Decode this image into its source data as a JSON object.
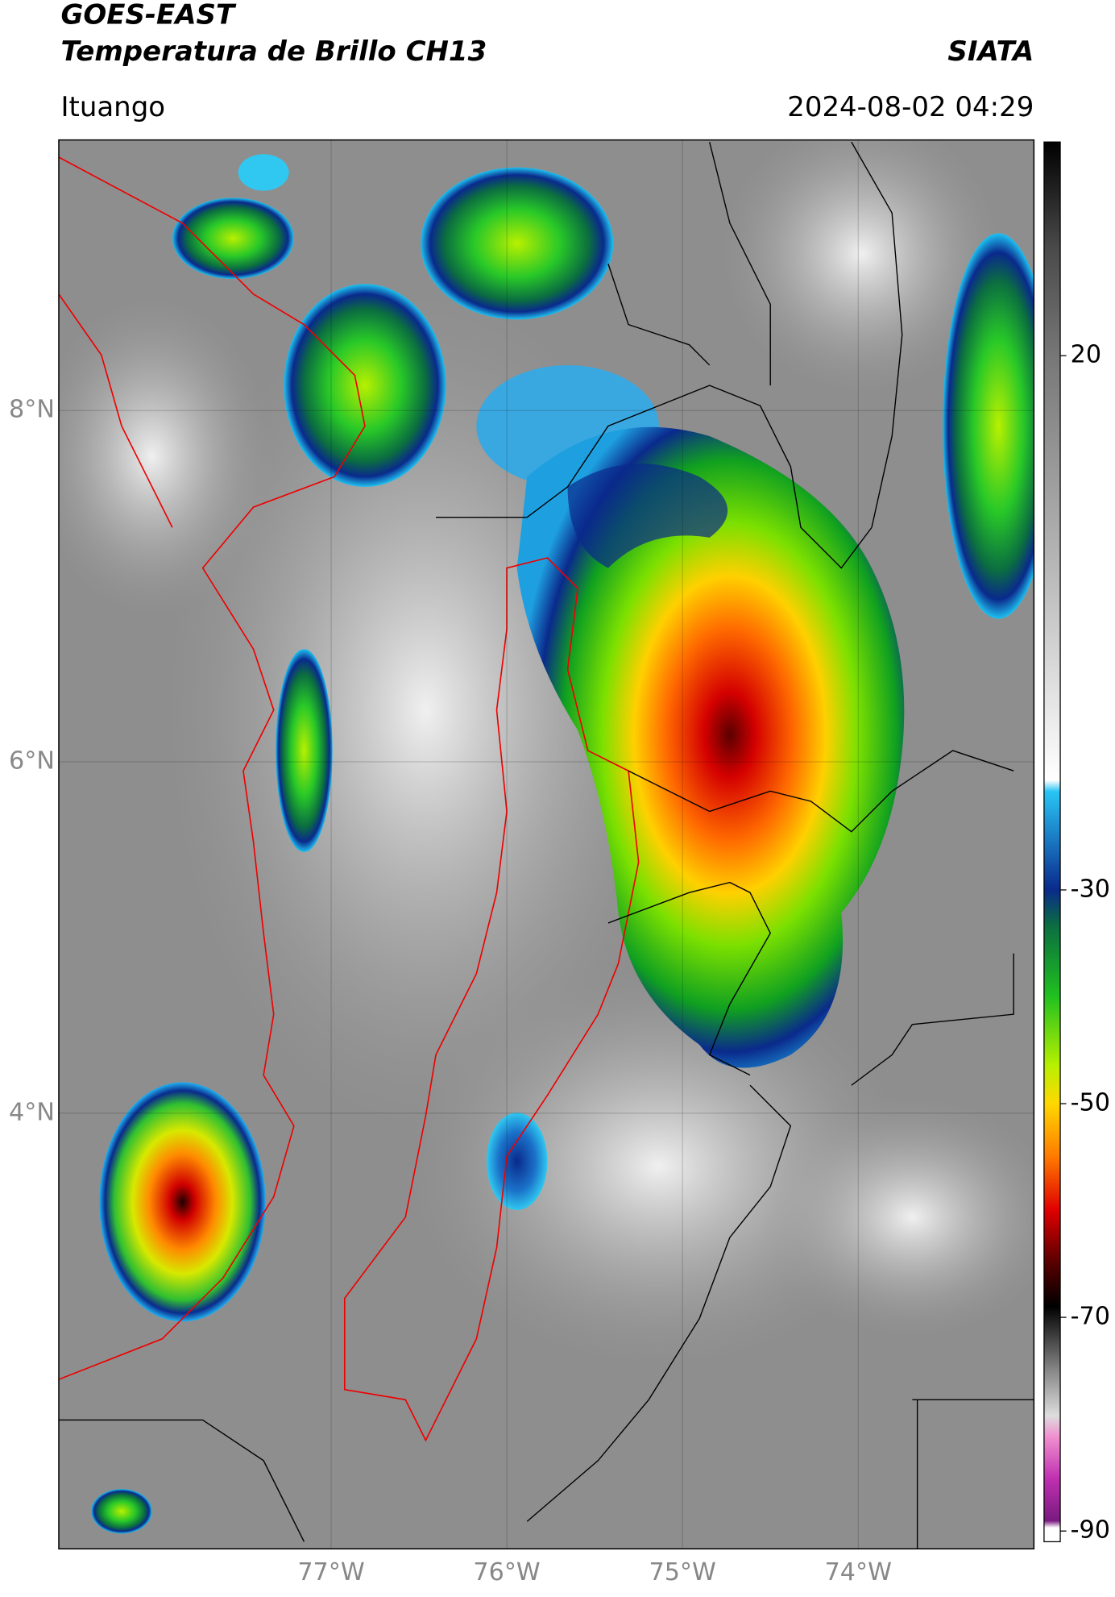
{
  "header": {
    "title": "GOES-EAST",
    "subtitle": "Temperatura de Brillo CH13",
    "agency": "SIATA",
    "location": "Ituango",
    "datetime": "2024-08-02 04:29"
  },
  "map": {
    "xlim": [
      -78.55,
      -73.0
    ],
    "ylim": [
      1.52,
      9.54
    ],
    "xticks": [
      {
        "value": -77,
        "label": "77°W"
      },
      {
        "value": -76,
        "label": "76°W"
      },
      {
        "value": -75,
        "label": "75°W"
      },
      {
        "value": -74,
        "label": "74°W"
      }
    ],
    "yticks": [
      {
        "value": 8,
        "label": "8°N"
      },
      {
        "value": 6,
        "label": "6°N"
      },
      {
        "value": 4,
        "label": "4°N"
      }
    ]
  },
  "colorbar": {
    "lim": [
      -91,
      40
    ],
    "ticks": [
      20,
      -30,
      -50,
      -70,
      -90
    ]
  }
}
